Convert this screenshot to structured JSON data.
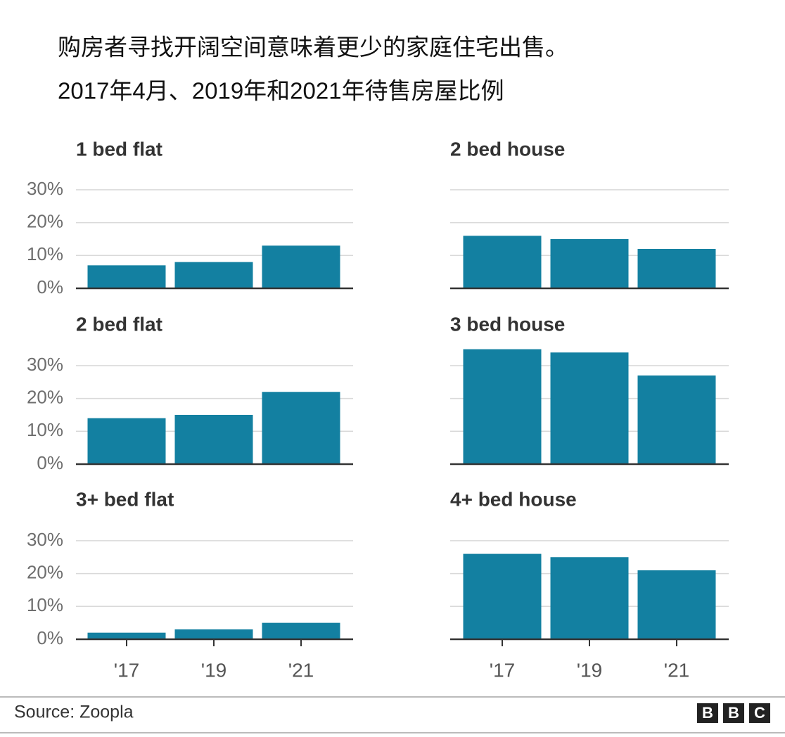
{
  "title": "购房者寻找开阔空间意味着更少的家庭住宅出售。",
  "subtitle": "2017年4月、2019年和2021年待售房屋比例",
  "source": "Source: Zoopla",
  "logo": [
    "B",
    "B",
    "C"
  ],
  "chart_data": [
    {
      "type": "bar",
      "title": "1 bed flat",
      "values": [
        7,
        8,
        13
      ],
      "color": "#1380a1",
      "ylim": [
        0,
        35
      ],
      "yticks": [
        {
          "value": 0,
          "label": "0%"
        },
        {
          "value": 10,
          "label": "10%"
        },
        {
          "value": 20,
          "label": "20%"
        },
        {
          "value": 30,
          "label": "30%"
        }
      ],
      "grid": true
    },
    {
      "type": "bar",
      "title": "2 bed house",
      "values": [
        16,
        15,
        12
      ],
      "color": "#1380a1",
      "ylim": [
        0,
        35
      ],
      "yticks": [
        0,
        10,
        20,
        30
      ],
      "show_ytick_labels": false,
      "grid": true
    },
    {
      "type": "bar",
      "title": "2 bed flat",
      "values": [
        14,
        15,
        22
      ],
      "color": "#1380a1",
      "ylim": [
        0,
        35
      ],
      "yticks": [
        {
          "value": 0,
          "label": "0%"
        },
        {
          "value": 10,
          "label": "10%"
        },
        {
          "value": 20,
          "label": "20%"
        },
        {
          "value": 30,
          "label": "30%"
        }
      ],
      "grid": true
    },
    {
      "type": "bar",
      "title": "3 bed house",
      "values": [
        35,
        34,
        27
      ],
      "color": "#1380a1",
      "ylim": [
        0,
        35
      ],
      "yticks": [
        0,
        10,
        20,
        30
      ],
      "show_ytick_labels": false,
      "grid": true
    },
    {
      "type": "bar",
      "title": "3+ bed flat",
      "categories": [
        "'17",
        "'19",
        "'21"
      ],
      "values": [
        2,
        3,
        5
      ],
      "color": "#1380a1",
      "ylim": [
        0,
        35
      ],
      "yticks": [
        {
          "value": 0,
          "label": "0%"
        },
        {
          "value": 10,
          "label": "10%"
        },
        {
          "value": 20,
          "label": "20%"
        },
        {
          "value": 30,
          "label": "30%"
        }
      ],
      "grid": true
    },
    {
      "type": "bar",
      "title": "4+ bed house",
      "categories": [
        "'17",
        "'19",
        "'21"
      ],
      "values": [
        26,
        25,
        21
      ],
      "color": "#1380a1",
      "ylim": [
        0,
        35
      ],
      "yticks": [
        0,
        10,
        20,
        30
      ],
      "show_ytick_labels": false,
      "grid": true
    }
  ]
}
